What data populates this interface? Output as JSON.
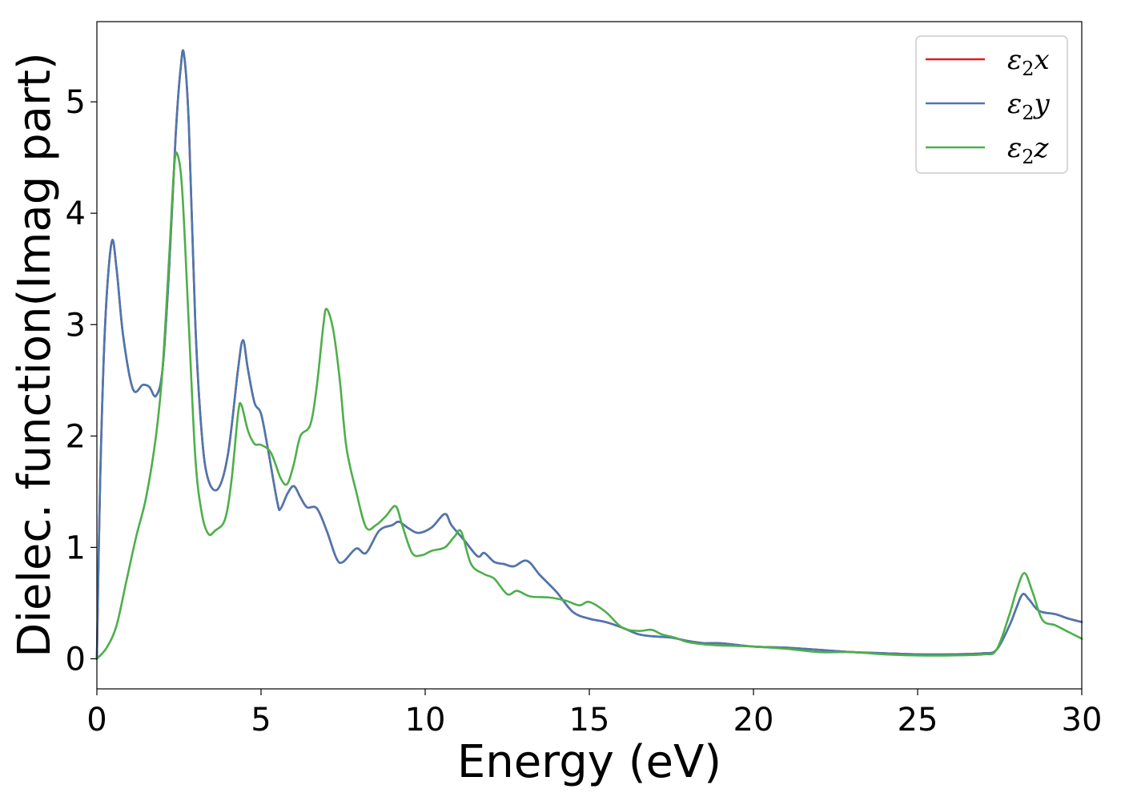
{
  "chart_data": {
    "type": "line",
    "xlabel": "Energy (eV)",
    "ylabel": "Dielec. function(Imag part)",
    "xlim": [
      0,
      30
    ],
    "ylim": [
      -0.27,
      5.72
    ],
    "xticks": [
      0,
      5,
      10,
      15,
      20,
      25,
      30
    ],
    "yticks": [
      0,
      1,
      2,
      3,
      4,
      5
    ],
    "xtick_labels": [
      "0",
      "5",
      "10",
      "15",
      "20",
      "25",
      "30"
    ],
    "ytick_labels": [
      "0",
      "1",
      "2",
      "3",
      "4",
      "5"
    ],
    "grid": false,
    "legend_position": "top-right",
    "series": [
      {
        "name": "ε₂x",
        "legend_base": "ε",
        "legend_sub": "2",
        "legend_var": "x",
        "color": "#e41a1c",
        "points": [
          [
            0,
            0
          ],
          [
            0.1,
            1.6
          ],
          [
            0.25,
            3.0
          ],
          [
            0.45,
            3.74
          ],
          [
            0.6,
            3.5
          ],
          [
            0.8,
            2.9
          ],
          [
            1.1,
            2.42
          ],
          [
            1.4,
            2.46
          ],
          [
            1.6,
            2.44
          ],
          [
            1.8,
            2.36
          ],
          [
            2.0,
            2.6
          ],
          [
            2.2,
            3.5
          ],
          [
            2.4,
            4.7
          ],
          [
            2.55,
            5.3
          ],
          [
            2.65,
            5.43
          ],
          [
            2.8,
            4.8
          ],
          [
            3.0,
            3.0
          ],
          [
            3.2,
            2.0
          ],
          [
            3.4,
            1.6
          ],
          [
            3.7,
            1.53
          ],
          [
            4.0,
            1.85
          ],
          [
            4.3,
            2.6
          ],
          [
            4.45,
            2.86
          ],
          [
            4.6,
            2.6
          ],
          [
            4.8,
            2.3
          ],
          [
            5.0,
            2.2
          ],
          [
            5.2,
            1.9
          ],
          [
            5.5,
            1.4
          ],
          [
            5.6,
            1.35
          ],
          [
            5.8,
            1.48
          ],
          [
            6.0,
            1.55
          ],
          [
            6.2,
            1.45
          ],
          [
            6.4,
            1.36
          ],
          [
            6.7,
            1.35
          ],
          [
            7.0,
            1.15
          ],
          [
            7.3,
            0.9
          ],
          [
            7.5,
            0.87
          ],
          [
            7.9,
            0.99
          ],
          [
            8.2,
            0.95
          ],
          [
            8.6,
            1.15
          ],
          [
            9.0,
            1.2
          ],
          [
            9.2,
            1.23
          ],
          [
            9.5,
            1.17
          ],
          [
            9.8,
            1.13
          ],
          [
            10.2,
            1.18
          ],
          [
            10.6,
            1.3
          ],
          [
            10.8,
            1.2
          ],
          [
            11.2,
            1.06
          ],
          [
            11.6,
            0.92
          ],
          [
            11.8,
            0.95
          ],
          [
            12.1,
            0.87
          ],
          [
            12.4,
            0.85
          ],
          [
            12.7,
            0.83
          ],
          [
            13.1,
            0.88
          ],
          [
            13.5,
            0.75
          ],
          [
            14.0,
            0.6
          ],
          [
            14.5,
            0.42
          ],
          [
            15.0,
            0.36
          ],
          [
            15.5,
            0.33
          ],
          [
            16.0,
            0.28
          ],
          [
            16.5,
            0.22
          ],
          [
            17.0,
            0.2
          ],
          [
            17.5,
            0.19
          ],
          [
            18.0,
            0.16
          ],
          [
            18.5,
            0.14
          ],
          [
            19.0,
            0.14
          ],
          [
            20.0,
            0.11
          ],
          [
            21.0,
            0.1
          ],
          [
            22.0,
            0.08
          ],
          [
            23.0,
            0.06
          ],
          [
            24.0,
            0.05
          ],
          [
            25.0,
            0.04
          ],
          [
            26.0,
            0.04
          ],
          [
            27.0,
            0.05
          ],
          [
            27.4,
            0.08
          ],
          [
            27.8,
            0.3
          ],
          [
            28.0,
            0.45
          ],
          [
            28.2,
            0.58
          ],
          [
            28.4,
            0.53
          ],
          [
            28.7,
            0.43
          ],
          [
            29.2,
            0.4
          ],
          [
            29.6,
            0.36
          ],
          [
            30,
            0.33
          ]
        ]
      },
      {
        "name": "ε₂y",
        "legend_base": "ε",
        "legend_sub": "2",
        "legend_var": "y",
        "color": "#4a78b0",
        "points": [
          [
            0,
            0
          ],
          [
            0.1,
            1.6
          ],
          [
            0.25,
            3.0
          ],
          [
            0.45,
            3.74
          ],
          [
            0.6,
            3.5
          ],
          [
            0.8,
            2.9
          ],
          [
            1.1,
            2.42
          ],
          [
            1.4,
            2.46
          ],
          [
            1.6,
            2.44
          ],
          [
            1.8,
            2.36
          ],
          [
            2.0,
            2.6
          ],
          [
            2.2,
            3.5
          ],
          [
            2.4,
            4.7
          ],
          [
            2.55,
            5.3
          ],
          [
            2.65,
            5.43
          ],
          [
            2.8,
            4.8
          ],
          [
            3.0,
            3.0
          ],
          [
            3.2,
            2.0
          ],
          [
            3.4,
            1.6
          ],
          [
            3.7,
            1.53
          ],
          [
            4.0,
            1.85
          ],
          [
            4.3,
            2.6
          ],
          [
            4.45,
            2.86
          ],
          [
            4.6,
            2.6
          ],
          [
            4.8,
            2.3
          ],
          [
            5.0,
            2.2
          ],
          [
            5.2,
            1.9
          ],
          [
            5.5,
            1.4
          ],
          [
            5.6,
            1.35
          ],
          [
            5.8,
            1.48
          ],
          [
            6.0,
            1.55
          ],
          [
            6.2,
            1.45
          ],
          [
            6.4,
            1.36
          ],
          [
            6.7,
            1.35
          ],
          [
            7.0,
            1.15
          ],
          [
            7.3,
            0.9
          ],
          [
            7.5,
            0.87
          ],
          [
            7.9,
            0.99
          ],
          [
            8.2,
            0.95
          ],
          [
            8.6,
            1.15
          ],
          [
            9.0,
            1.2
          ],
          [
            9.2,
            1.23
          ],
          [
            9.5,
            1.17
          ],
          [
            9.8,
            1.13
          ],
          [
            10.2,
            1.18
          ],
          [
            10.6,
            1.3
          ],
          [
            10.8,
            1.2
          ],
          [
            11.2,
            1.06
          ],
          [
            11.6,
            0.92
          ],
          [
            11.8,
            0.95
          ],
          [
            12.1,
            0.87
          ],
          [
            12.4,
            0.85
          ],
          [
            12.7,
            0.83
          ],
          [
            13.1,
            0.88
          ],
          [
            13.5,
            0.75
          ],
          [
            14.0,
            0.6
          ],
          [
            14.5,
            0.42
          ],
          [
            15.0,
            0.36
          ],
          [
            15.5,
            0.33
          ],
          [
            16.0,
            0.28
          ],
          [
            16.5,
            0.22
          ],
          [
            17.0,
            0.2
          ],
          [
            17.5,
            0.19
          ],
          [
            18.0,
            0.16
          ],
          [
            18.5,
            0.14
          ],
          [
            19.0,
            0.14
          ],
          [
            20.0,
            0.11
          ],
          [
            21.0,
            0.1
          ],
          [
            22.0,
            0.08
          ],
          [
            23.0,
            0.06
          ],
          [
            24.0,
            0.05
          ],
          [
            25.0,
            0.04
          ],
          [
            26.0,
            0.04
          ],
          [
            27.0,
            0.05
          ],
          [
            27.4,
            0.08
          ],
          [
            27.8,
            0.3
          ],
          [
            28.0,
            0.45
          ],
          [
            28.2,
            0.58
          ],
          [
            28.4,
            0.53
          ],
          [
            28.7,
            0.43
          ],
          [
            29.2,
            0.4
          ],
          [
            29.6,
            0.36
          ],
          [
            30,
            0.33
          ]
        ]
      },
      {
        "name": "ε₂z",
        "legend_base": "ε",
        "legend_sub": "2",
        "legend_var": "z",
        "color": "#4daf4a",
        "points": [
          [
            0,
            0
          ],
          [
            0.3,
            0.1
          ],
          [
            0.6,
            0.3
          ],
          [
            0.9,
            0.7
          ],
          [
            1.2,
            1.1
          ],
          [
            1.5,
            1.45
          ],
          [
            1.8,
            2.0
          ],
          [
            2.0,
            2.6
          ],
          [
            2.2,
            3.6
          ],
          [
            2.35,
            4.4
          ],
          [
            2.45,
            4.53
          ],
          [
            2.6,
            4.2
          ],
          [
            2.8,
            3.0
          ],
          [
            3.0,
            1.8
          ],
          [
            3.2,
            1.3
          ],
          [
            3.4,
            1.12
          ],
          [
            3.6,
            1.15
          ],
          [
            3.9,
            1.25
          ],
          [
            4.1,
            1.6
          ],
          [
            4.3,
            2.2
          ],
          [
            4.4,
            2.28
          ],
          [
            4.6,
            2.05
          ],
          [
            4.8,
            1.93
          ],
          [
            5.0,
            1.92
          ],
          [
            5.3,
            1.85
          ],
          [
            5.6,
            1.62
          ],
          [
            5.8,
            1.57
          ],
          [
            6.0,
            1.75
          ],
          [
            6.2,
            2.0
          ],
          [
            6.5,
            2.1
          ],
          [
            6.7,
            2.45
          ],
          [
            6.9,
            3.0
          ],
          [
            7.0,
            3.14
          ],
          [
            7.2,
            2.95
          ],
          [
            7.4,
            2.5
          ],
          [
            7.6,
            1.9
          ],
          [
            7.9,
            1.5
          ],
          [
            8.2,
            1.18
          ],
          [
            8.5,
            1.2
          ],
          [
            8.8,
            1.28
          ],
          [
            9.1,
            1.37
          ],
          [
            9.3,
            1.2
          ],
          [
            9.6,
            0.95
          ],
          [
            9.9,
            0.93
          ],
          [
            10.2,
            0.97
          ],
          [
            10.6,
            1.0
          ],
          [
            10.9,
            1.1
          ],
          [
            11.1,
            1.14
          ],
          [
            11.4,
            0.85
          ],
          [
            11.8,
            0.76
          ],
          [
            12.1,
            0.72
          ],
          [
            12.5,
            0.58
          ],
          [
            12.8,
            0.61
          ],
          [
            13.2,
            0.56
          ],
          [
            13.8,
            0.55
          ],
          [
            14.3,
            0.52
          ],
          [
            14.7,
            0.48
          ],
          [
            15.0,
            0.51
          ],
          [
            15.5,
            0.42
          ],
          [
            16.0,
            0.28
          ],
          [
            16.5,
            0.25
          ],
          [
            16.9,
            0.26
          ],
          [
            17.2,
            0.22
          ],
          [
            17.6,
            0.19
          ],
          [
            18.0,
            0.15
          ],
          [
            18.5,
            0.13
          ],
          [
            19.0,
            0.12
          ],
          [
            20.0,
            0.11
          ],
          [
            21.0,
            0.09
          ],
          [
            22.0,
            0.06
          ],
          [
            23.0,
            0.06
          ],
          [
            24.0,
            0.04
          ],
          [
            25.0,
            0.03
          ],
          [
            26.0,
            0.03
          ],
          [
            27.0,
            0.04
          ],
          [
            27.4,
            0.08
          ],
          [
            27.8,
            0.4
          ],
          [
            28.0,
            0.6
          ],
          [
            28.25,
            0.77
          ],
          [
            28.5,
            0.6
          ],
          [
            28.8,
            0.35
          ],
          [
            29.2,
            0.3
          ],
          [
            29.6,
            0.24
          ],
          [
            30,
            0.18
          ]
        ]
      }
    ]
  }
}
